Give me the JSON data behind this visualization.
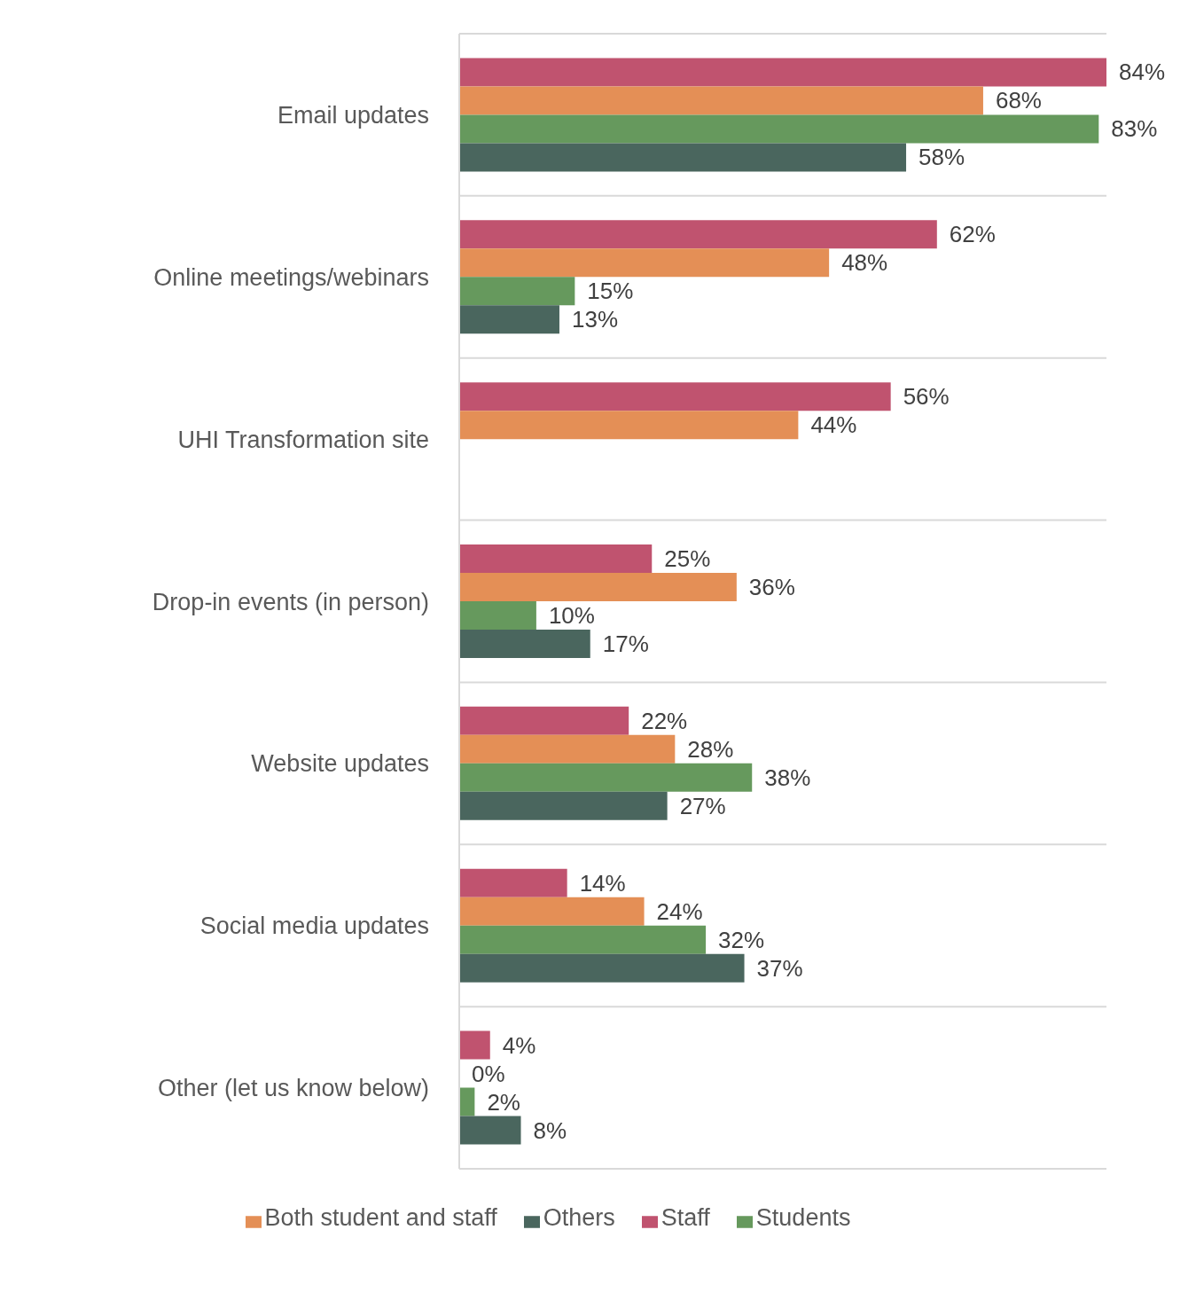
{
  "chart_data": {
    "type": "bar",
    "orientation": "horizontal",
    "categories": [
      "Email updates",
      "Online meetings/webinars",
      "UHI Transformation site",
      "Drop-in events (in person)",
      "Website updates",
      "Social media updates",
      "Other (let us know below)"
    ],
    "series": [
      {
        "name": "Staff",
        "color": "#c0536f",
        "values": [
          84,
          62,
          56,
          25,
          22,
          14,
          4
        ],
        "value_labels": [
          "84%",
          "62%",
          "56%",
          "25%",
          "22%",
          "14%",
          "4%"
        ]
      },
      {
        "name": "Both student and staff",
        "color": "#e48f56",
        "values": [
          68,
          48,
          44,
          36,
          28,
          24,
          0
        ],
        "value_labels": [
          "68%",
          "48%",
          "44%",
          "36%",
          "28%",
          "24%",
          "0%"
        ]
      },
      {
        "name": "Students",
        "color": "#66995d",
        "values": [
          83,
          15,
          null,
          10,
          38,
          32,
          2
        ],
        "value_labels": [
          "83%",
          "15%",
          null,
          "10%",
          "38%",
          "32%",
          "2%"
        ]
      },
      {
        "name": "Others",
        "color": "#4a665e",
        "values": [
          58,
          13,
          null,
          17,
          27,
          37,
          8
        ],
        "value_labels": [
          "58%",
          "13%",
          null,
          "17%",
          "27%",
          "37%",
          "8%"
        ]
      }
    ],
    "tick_labels": "y",
    "grid": "y",
    "legend": "bottom"
  }
}
